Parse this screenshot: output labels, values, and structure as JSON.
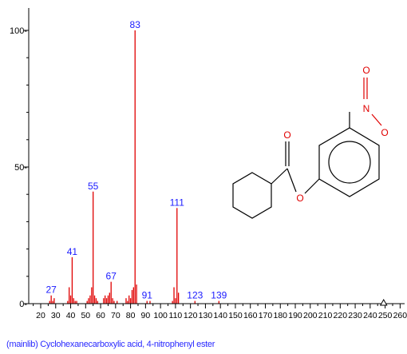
{
  "chart_data": {
    "type": "bar",
    "title": "",
    "xlabel": "",
    "ylabel": "",
    "xlim": [
      12,
      263
    ],
    "ylim": [
      0,
      105
    ],
    "x_ticks": [
      20,
      30,
      40,
      50,
      60,
      70,
      80,
      90,
      100,
      110,
      120,
      130,
      140,
      150,
      160,
      170,
      180,
      190,
      200,
      210,
      220,
      230,
      240,
      250,
      260
    ],
    "y_ticks": [
      0,
      50,
      100
    ],
    "y_tick_labels": [
      "0",
      "50",
      "100"
    ],
    "x": [
      26,
      27,
      28,
      29,
      38,
      39,
      40,
      41,
      42,
      43,
      44,
      51,
      52,
      53,
      54,
      55,
      56,
      57,
      58,
      62,
      63,
      64,
      65,
      66,
      67,
      68,
      69,
      71,
      77,
      78,
      79,
      80,
      81,
      82,
      83,
      84,
      91,
      93,
      108,
      109,
      110,
      111,
      112,
      123,
      139
    ],
    "values": [
      1,
      3,
      1,
      2,
      1,
      6,
      3,
      17,
      2,
      1,
      1,
      1,
      2,
      3,
      6,
      41,
      3,
      2,
      1,
      2,
      3,
      2,
      3,
      4,
      8,
      2,
      1,
      1,
      2,
      1,
      3,
      2,
      5,
      6,
      100,
      7,
      1,
      1,
      1,
      6,
      2,
      35,
      4,
      1,
      1
    ],
    "peak_labels": [
      {
        "x": 27,
        "y": 3,
        "text": "27"
      },
      {
        "x": 41,
        "y": 17,
        "text": "41"
      },
      {
        "x": 55,
        "y": 41,
        "text": "55"
      },
      {
        "x": 67,
        "y": 8,
        "text": "67"
      },
      {
        "x": 83,
        "y": 100,
        "text": "83"
      },
      {
        "x": 91,
        "y": 1,
        "text": "91"
      },
      {
        "x": 111,
        "y": 35,
        "text": "111"
      },
      {
        "x": 123,
        "y": 1,
        "text": "123"
      },
      {
        "x": 139,
        "y": 1,
        "text": "139"
      }
    ],
    "molecular_ion_marker_x": 249,
    "colors": {
      "bars": "#e00000",
      "peak_labels": "#1a1aff",
      "axes": "#000000",
      "structure": "#000000",
      "heteroatom": "#e00000"
    }
  },
  "structure": {
    "atoms": {
      "oxygen": "O",
      "nitrogen": "N"
    }
  },
  "caption": "(mainlib) Cyclohexanecarboxylic acid, 4-nitrophenyl ester"
}
